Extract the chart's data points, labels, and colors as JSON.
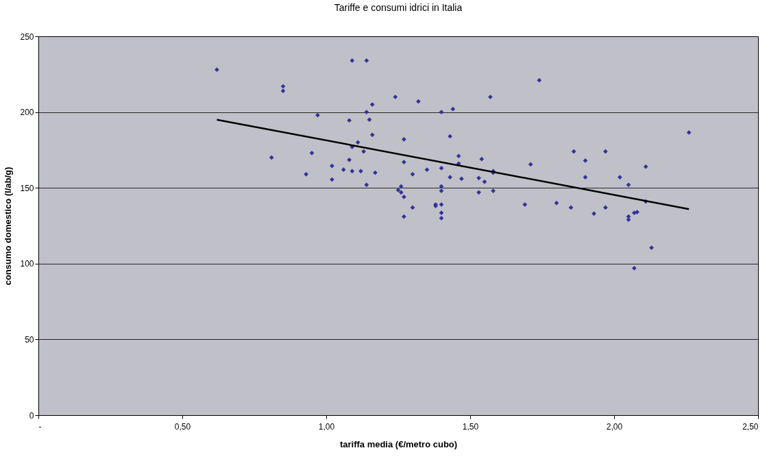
{
  "chart_data": {
    "type": "scatter",
    "title": "Tariffe e consumi idrici in Italia",
    "xlabel": "tariffa media (€/metro cubo)",
    "ylabel": "consumo domestico (l/ab/g)",
    "xlim": [
      0,
      2.5
    ],
    "ylim": [
      0,
      250
    ],
    "xticks": [
      {
        "value": 0,
        "label": "-"
      },
      {
        "value": 0.5,
        "label": "0,50"
      },
      {
        "value": 1,
        "label": "1,00"
      },
      {
        "value": 1.5,
        "label": "1,50"
      },
      {
        "value": 2,
        "label": "2,00"
      },
      {
        "value": 2.5,
        "label": "2,50"
      }
    ],
    "yticks": [
      0,
      50,
      100,
      150,
      200,
      250
    ],
    "grid": "y",
    "series": [
      {
        "color": "#333399",
        "marker": "diamond",
        "x": [
          0.62,
          0.85,
          0.85,
          0.81,
          0.93,
          0.95,
          0.97,
          1.02,
          1.02,
          1.06,
          1.08,
          1.08,
          1.09,
          1.14,
          1.09,
          1.09,
          1.11,
          1.13,
          1.12,
          1.14,
          1.14,
          1.15,
          1.16,
          1.16,
          1.17,
          1.24,
          1.27,
          1.27,
          1.26,
          1.25,
          1.26,
          1.27,
          1.27,
          1.3,
          1.3,
          1.32,
          1.35,
          1.38,
          1.38,
          1.4,
          1.4,
          1.4,
          1.4,
          1.4,
          1.4,
          1.4,
          1.43,
          1.43,
          1.44,
          1.46,
          1.46,
          1.47,
          1.53,
          1.54,
          1.55,
          1.53,
          1.57,
          1.58,
          1.58,
          1.58,
          1.69,
          1.71,
          1.74,
          1.8,
          1.85,
          1.86,
          1.9,
          1.9,
          1.97,
          2.02,
          2.05,
          2.11,
          2.11,
          1.93,
          1.97,
          2.05,
          2.05,
          2.07,
          2.08,
          2.13,
          2.07,
          2.26
        ],
        "values": [
          228,
          217,
          214,
          170,
          159,
          173,
          198,
          164.5,
          155.5,
          162,
          168.5,
          194.5,
          234,
          234,
          161,
          177,
          180,
          174,
          161,
          152,
          200,
          195,
          205,
          185,
          160,
          210,
          182,
          167,
          151,
          148.5,
          147,
          144,
          131,
          159,
          137,
          207,
          162,
          139,
          138,
          200,
          163,
          151,
          148,
          139,
          133.5,
          130,
          157,
          184,
          202,
          171,
          166,
          156,
          156.5,
          169,
          154,
          147,
          210,
          161,
          160,
          148,
          139,
          165.5,
          221,
          140,
          137,
          174,
          168,
          157,
          174,
          157,
          152,
          164,
          141,
          133,
          137,
          131,
          129,
          133.5,
          134,
          110.5,
          97,
          186.5
        ]
      },
      {
        "type": "line",
        "color": "#000000",
        "marker": "none",
        "line_style": "solid",
        "x": [
          0.62,
          2.26
        ],
        "values": [
          195,
          136
        ]
      }
    ]
  }
}
